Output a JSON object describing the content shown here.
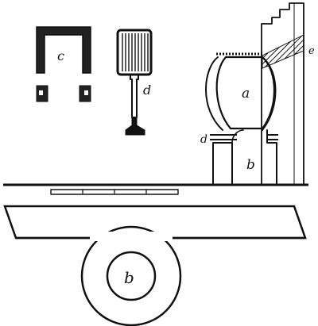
{
  "labels": {
    "a": "a",
    "b_upper": "b",
    "b_lower": "b",
    "c": "c",
    "d_stand": "d",
    "d_ring": "d",
    "e": "e"
  },
  "colors": {
    "ink": "#111111",
    "paper": "#ffffff"
  }
}
